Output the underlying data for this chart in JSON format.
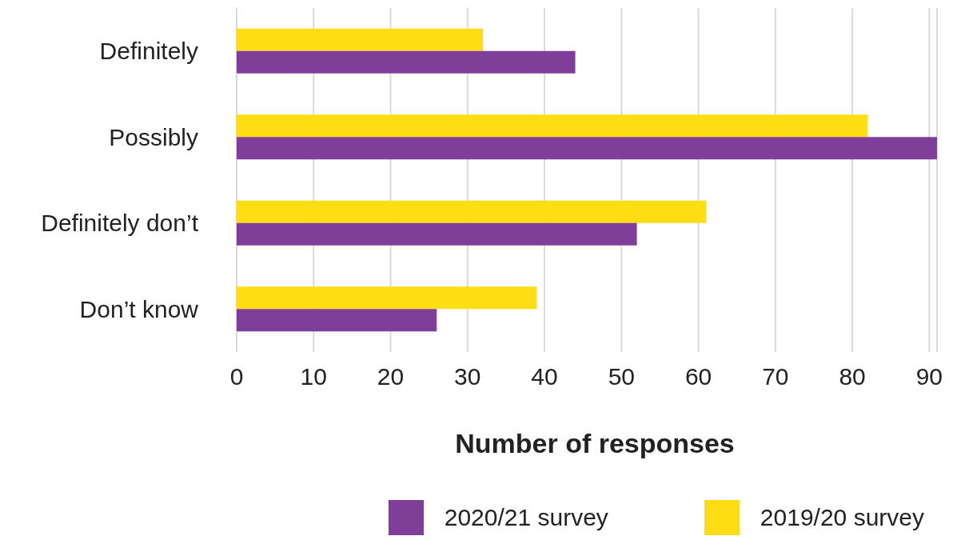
{
  "chart_data": {
    "type": "bar",
    "orientation": "horizontal",
    "xlabel": "Number of responses",
    "categories": [
      "Definitely",
      "Possibly",
      "Definitely don’t",
      "Don’t know"
    ],
    "series": [
      {
        "name": "2020/21 survey",
        "color": "#7f3f98",
        "values": [
          44,
          91,
          52,
          26
        ]
      },
      {
        "name": "2019/20 survey",
        "color": "#ffdd15",
        "values": [
          32,
          82,
          61,
          39
        ]
      }
    ],
    "xlim": [
      0,
      91
    ],
    "xticks": [
      0,
      10,
      20,
      30,
      40,
      50,
      60,
      70,
      80,
      90
    ],
    "grid": "x",
    "legend": "bottom"
  }
}
